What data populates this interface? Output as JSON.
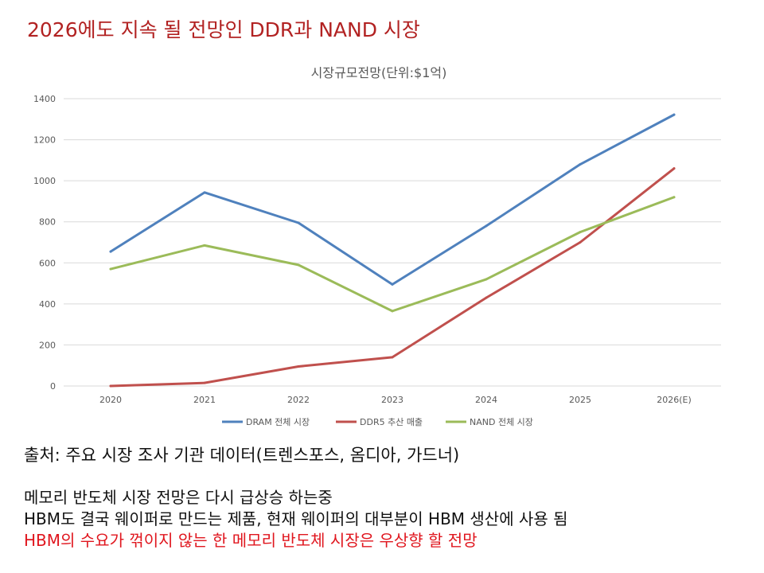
{
  "slide": {
    "title": "2026에도 지속 될 전망인 DDR과 NAND 시장",
    "source": "출처: 주요 시장 조사 기관 데이터(트렌스포스, 옴디아, 가드너)",
    "notes": [
      "메모리 반도체 시장 전망은 다시 급상승 하는중",
      "HBM도 결국 웨이퍼로 만드는 제품, 현재 웨이퍼의 대부분이 HBM 생산에 사용 됨",
      "HBM의 수요가 꺾이지 않는 한 메모리 반도체 시장은 우상향 할 전망"
    ]
  },
  "colors": {
    "title": "#b22222",
    "emphasis": "#e0161e",
    "grid": "#d9d9d9",
    "axis_text": "#595959"
  },
  "chart_data": {
    "type": "line",
    "title": "시장규모전망(단위:$1억)",
    "categories": [
      "2020",
      "2021",
      "2022",
      "2023",
      "2024",
      "2025",
      "2026(E)"
    ],
    "ylim": [
      0,
      1400
    ],
    "yticks": [
      0,
      200,
      400,
      600,
      800,
      1000,
      1200,
      1400
    ],
    "grid": true,
    "legend_position": "bottom",
    "series": [
      {
        "name": "DRAM 전체 시장",
        "color": "#4f81bd",
        "values": [
          655,
          943,
          795,
          495,
          780,
          1080,
          1322
        ]
      },
      {
        "name": "DDR5 추산 매출",
        "color": "#c0504d",
        "values": [
          0,
          15,
          95,
          140,
          430,
          700,
          1060
        ]
      },
      {
        "name": "NAND 전체 시장",
        "color": "#9bbb59",
        "values": [
          570,
          685,
          590,
          365,
          520,
          750,
          920
        ]
      }
    ]
  }
}
